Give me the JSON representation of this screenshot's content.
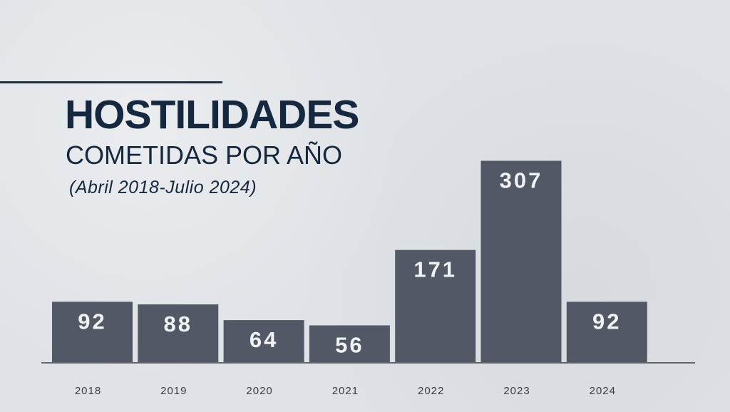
{
  "header": {
    "title": "HOSTILIDADES",
    "subtitle": "COMETIDAS POR AÑO",
    "date_range": "(Abril 2018-Julio 2024)"
  },
  "colors": {
    "background": "#dfe2e6",
    "bar": "#535866",
    "bar_label": "#f1f2f4",
    "title": "#14283f",
    "axis": "#3a3d44",
    "tick_label": "#3a3d44"
  },
  "chart_data": {
    "type": "bar",
    "title": "HOSTILIDADES",
    "xlabel": "",
    "ylabel": "",
    "categories": [
      "2018",
      "2019",
      "2020",
      "2021",
      "2022",
      "2023",
      "2024"
    ],
    "values": [
      92,
      88,
      64,
      56,
      171,
      307,
      92
    ],
    "data_labels": [
      "92",
      "88",
      "64",
      "56",
      "171",
      "307",
      "92"
    ],
    "ylim": [
      0,
      320
    ],
    "grid": false,
    "legend": "none"
  }
}
